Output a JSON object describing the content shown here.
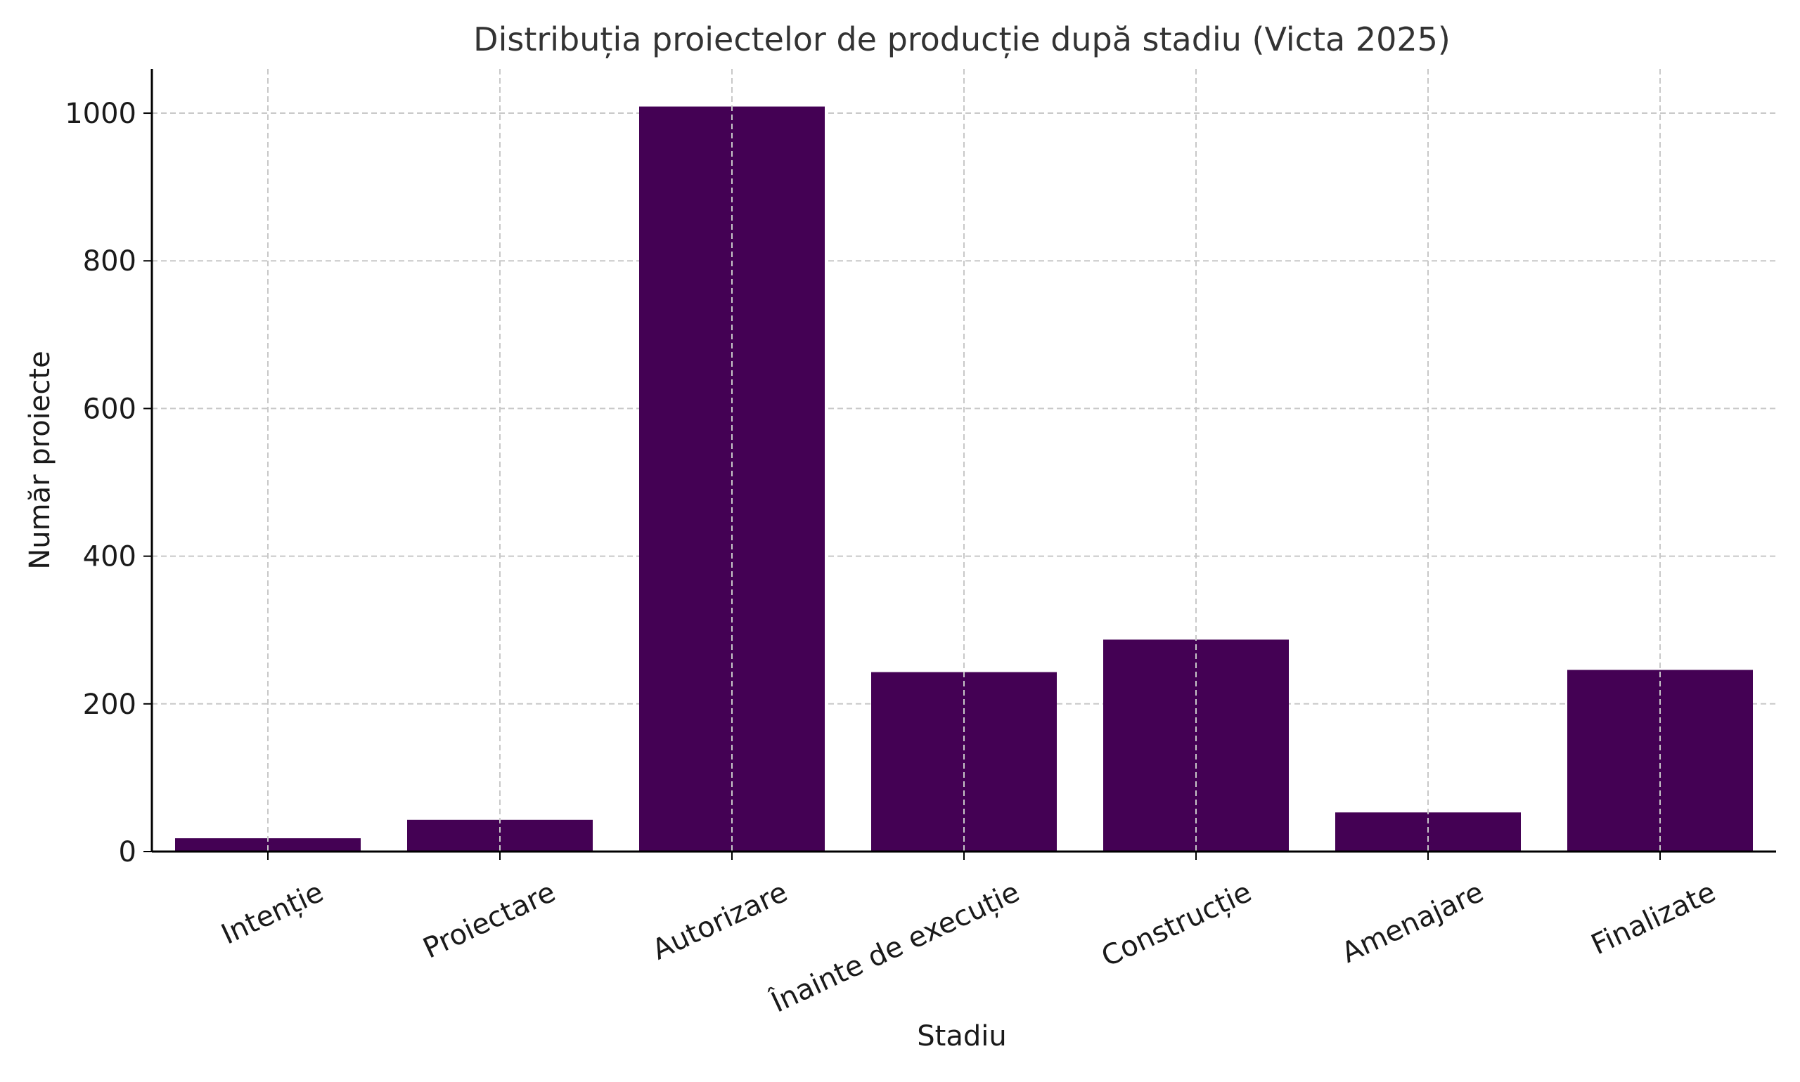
{
  "chart_data": {
    "type": "bar",
    "title": "Distribuția proiectelor de producție după stadiu (Victa 2025)",
    "xlabel": "Stadiu",
    "ylabel": "Număr proiecte",
    "categories": [
      "Intenție",
      "Proiectare",
      "Autorizare",
      "Înainte de execuție",
      "Construcție",
      "Amenajare",
      "Finalizate"
    ],
    "values": [
      18,
      43,
      1009,
      243,
      287,
      53,
      246
    ],
    "ylim": [
      0,
      1060
    ],
    "yticks": [
      0,
      200,
      400,
      600,
      800,
      1000
    ],
    "grid": true,
    "bar_color": "#440154",
    "grid_color": "#c8c8c8",
    "axis_color": "#000000",
    "text_color": "#333333"
  }
}
